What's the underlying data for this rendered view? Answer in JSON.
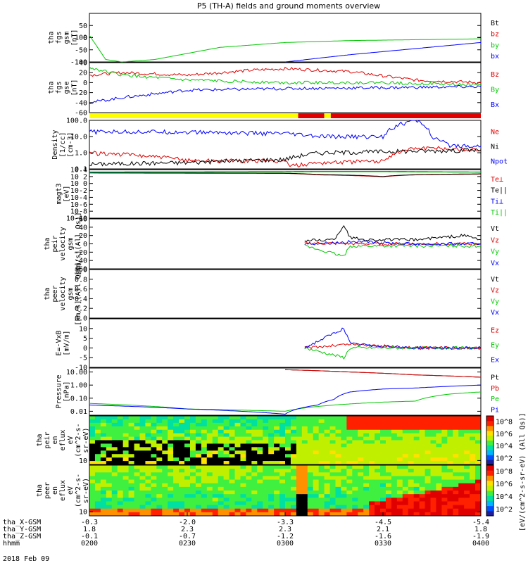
{
  "title": "P5 (TH-A) fields and ground moments overview",
  "date_label": "2018 Feb 09",
  "colors": {
    "black": "#000000",
    "red": "#e00000",
    "green": "#00c800",
    "blue": "#0000ff",
    "yellow": "#ffff00",
    "orange": "#ff8000",
    "cyan": "#00c8ff"
  },
  "chart_data": [
    {
      "id": "fgs_gsm",
      "type": "line",
      "ylabel": [
        "tha",
        "fgs",
        "gsm",
        "[nT]"
      ],
      "ylim": [
        -100,
        100
      ],
      "yticks": [
        "-100",
        "-50",
        "0",
        "50",
        "100"
      ],
      "series": [
        {
          "name": "Bt",
          "color": "#000000"
        },
        {
          "name": "bz",
          "color": "#e00000"
        },
        {
          "name": "by",
          "color": "#00c800",
          "x": [
            0,
            5,
            10,
            20,
            40,
            60,
            80,
            120
          ],
          "y": [
            10,
            -90,
            -100,
            -90,
            -40,
            -20,
            -12,
            -5
          ]
        },
        {
          "name": "bx",
          "color": "#0000ff",
          "x": [
            60,
            80,
            100,
            120
          ],
          "y": [
            -100,
            -70,
            -45,
            -20
          ]
        }
      ]
    },
    {
      "id": "fgs_gse",
      "type": "line",
      "ylabel": [
        "tha",
        "fgs",
        "gse",
        "[nT]"
      ],
      "ylim": [
        -60,
        40
      ],
      "yticks": [
        "-60",
        "-40",
        "-20",
        "0",
        "20",
        "40"
      ],
      "series": [
        {
          "name": "Bz",
          "color": "#e00000",
          "x": [
            0,
            10,
            30,
            50,
            60,
            80,
            100,
            120
          ],
          "y": [
            15,
            20,
            15,
            25,
            28,
            22,
            5,
            0
          ]
        },
        {
          "name": "By",
          "color": "#00c800",
          "x": [
            0,
            10,
            30,
            60,
            90,
            120
          ],
          "y": [
            30,
            15,
            5,
            0,
            0,
            -5
          ]
        },
        {
          "name": "Bx",
          "color": "#0000ff",
          "x": [
            0,
            10,
            30,
            60,
            90,
            120
          ],
          "y": [
            -40,
            -30,
            -15,
            -12,
            -10,
            -8
          ]
        }
      ]
    },
    {
      "id": "region_bar",
      "type": "bar",
      "segments": [
        {
          "x0": 0,
          "x1": 64,
          "color": "#ffff00"
        },
        {
          "x0": 64,
          "x1": 72,
          "color": "#e00000"
        },
        {
          "x0": 72,
          "x1": 74,
          "color": "#ffff00"
        },
        {
          "x0": 74,
          "x1": 120,
          "color": "#e00000"
        }
      ]
    },
    {
      "id": "density",
      "type": "line",
      "ylabel": [
        "Density",
        "[1/cc]",
        "[cm-3]"
      ],
      "yscale": "log",
      "ylim": [
        0.1,
        100
      ],
      "yticks": [
        "0.1",
        "1.0",
        "10.0",
        "100.0"
      ],
      "series": [
        {
          "name": "Ne",
          "color": "#e00000",
          "x": [
            0,
            10,
            30,
            60,
            62,
            70,
            90,
            100,
            110,
            120
          ],
          "y": [
            1.0,
            0.8,
            0.35,
            0.3,
            0.15,
            0.25,
            0.3,
            2.0,
            1.8,
            1.5
          ]
        },
        {
          "name": "Ni",
          "color": "#000000",
          "x": [
            0,
            30,
            60,
            70,
            90,
            100,
            120
          ],
          "y": [
            0.2,
            0.25,
            0.4,
            1.0,
            1.2,
            1.3,
            1.5
          ]
        },
        {
          "name": "Npot",
          "color": "#0000ff",
          "x": [
            0,
            20,
            40,
            60,
            70,
            90,
            100,
            105,
            110,
            120
          ],
          "y": [
            20,
            20,
            18,
            15,
            10,
            10,
            100,
            8,
            3,
            2.5
          ]
        }
      ]
    },
    {
      "id": "temperature",
      "type": "line",
      "ylabel": [
        "magt3",
        "[eV]"
      ],
      "yscale": "log",
      "ylim": [
        1e-10,
        10000
      ],
      "yticks": [
        "10-10",
        "10-8",
        "10-6",
        "10-4",
        "10-2",
        "10 0",
        "10 2",
        "10 4"
      ],
      "series": [
        {
          "name": "Te⊥",
          "color": "#e00000",
          "x": [
            0,
            60,
            70,
            90,
            100,
            120
          ],
          "y": [
            1000,
            800,
            300,
            80,
            300,
            500
          ]
        },
        {
          "name": "Te||",
          "color": "#000000",
          "x": [
            0,
            60,
            70,
            90,
            100,
            120
          ],
          "y": [
            1200,
            900,
            400,
            100,
            350,
            600
          ]
        },
        {
          "name": "Ti⊥",
          "color": "#0000ff",
          "x": [
            0,
            60,
            70,
            90,
            100,
            120
          ],
          "y": [
            2000,
            2500,
            3000,
            3000,
            2500,
            2000
          ]
        },
        {
          "name": "Ti||",
          "color": "#00c800",
          "x": [
            0,
            60,
            70,
            90,
            100,
            120
          ],
          "y": [
            1500,
            2000,
            2500,
            2500,
            2000,
            1800
          ]
        }
      ]
    },
    {
      "id": "peir_velocity",
      "type": "line",
      "ylabel": [
        "tha",
        "peir",
        "velocity",
        "gsm",
        "[km/s](All Qs)]"
      ],
      "ylim": [
        -60,
        60
      ],
      "yticks": [
        "-60",
        "-40",
        "-20",
        "0",
        "20",
        "40",
        "60"
      ],
      "series": [
        {
          "name": "Vt",
          "color": "#000000",
          "x": [
            66,
            75,
            78,
            80,
            85,
            100,
            115,
            120
          ],
          "y": [
            8,
            10,
            45,
            15,
            10,
            10,
            20,
            10
          ]
        },
        {
          "name": "Vz",
          "color": "#e00000",
          "x": [
            66,
            80,
            100,
            120
          ],
          "y": [
            2,
            0,
            0,
            0
          ]
        },
        {
          "name": "Vy",
          "color": "#00c800",
          "x": [
            66,
            78,
            80,
            100,
            120
          ],
          "y": [
            -5,
            -30,
            -5,
            -5,
            -5
          ]
        },
        {
          "name": "Vx",
          "color": "#0000ff",
          "x": [
            66,
            80,
            100,
            120
          ],
          "y": [
            0,
            5,
            0,
            0
          ]
        }
      ]
    },
    {
      "id": "peer_velocity",
      "type": "line",
      "ylabel": [
        "tha",
        "peer",
        "velocity",
        "gsm",
        "[km/s](All Qs)]"
      ],
      "ylim": [
        0,
        1
      ],
      "yticks": [
        "0.0",
        "0.2",
        "0.4",
        "0.6",
        "0.8",
        "1.0"
      ],
      "series": [
        {
          "name": "Vt",
          "color": "#000000"
        },
        {
          "name": "Vz",
          "color": "#e00000"
        },
        {
          "name": "Vy",
          "color": "#00c800"
        },
        {
          "name": "Vx",
          "color": "#0000ff"
        }
      ]
    },
    {
      "id": "efield",
      "type": "line",
      "ylabel": [
        "E=-VxB",
        "[mV/m]"
      ],
      "ylim": [
        -10,
        15
      ],
      "yticks": [
        "-10",
        "-5",
        "0",
        "5",
        "10"
      ],
      "series": [
        {
          "name": "Ez",
          "color": "#e00000",
          "x": [
            66,
            80,
            100,
            120
          ],
          "y": [
            0,
            2,
            0,
            0
          ]
        },
        {
          "name": "Ey",
          "color": "#00c800",
          "x": [
            66,
            78,
            80,
            100,
            120
          ],
          "y": [
            0,
            -5,
            0,
            0,
            0
          ]
        },
        {
          "name": "Ex",
          "color": "#0000ff",
          "x": [
            66,
            78,
            80,
            100,
            120
          ],
          "y": [
            0,
            10,
            2,
            0,
            0
          ]
        }
      ]
    },
    {
      "id": "pressure",
      "type": "line",
      "ylabel": [
        "Pressure",
        "[nPa]"
      ],
      "yscale": "log",
      "ylim": [
        0.005,
        20
      ],
      "yticks": [
        "0.01",
        "0.10",
        "1.00",
        "10.00"
      ],
      "series": [
        {
          "name": "Pt",
          "color": "#000000",
          "x": [
            60,
            80,
            100,
            120
          ],
          "y": [
            15,
            10,
            6,
            4
          ]
        },
        {
          "name": "Pb",
          "color": "#e00000",
          "x": [
            60,
            80,
            100,
            120
          ],
          "y": [
            15,
            10,
            6,
            4
          ]
        },
        {
          "name": "Pe",
          "color": "#00c800",
          "x": [
            0,
            30,
            60,
            75,
            90,
            100,
            110,
            120
          ],
          "y": [
            0.04,
            0.015,
            0.01,
            0.03,
            0.05,
            0.06,
            0.2,
            0.3
          ]
        },
        {
          "name": "Pi",
          "color": "#0000ff",
          "x": [
            0,
            30,
            60,
            70,
            75,
            80,
            90,
            100,
            120
          ],
          "y": [
            0.03,
            0.015,
            0.006,
            0.03,
            0.08,
            0.3,
            0.5,
            0.6,
            1.0
          ]
        }
      ]
    },
    {
      "id": "peir_spectrogram",
      "type": "heatmap",
      "ylabel": [
        "tha",
        "peir",
        "en",
        "eflux",
        "eV",
        "(cm^2-s-",
        "sr-eV)"
      ],
      "yscale": "log",
      "ylim": [
        5,
        25000
      ],
      "yticks": [
        "10",
        "100",
        "1000",
        "10000"
      ],
      "colorbar": {
        "label": "[eV/(cm^2-s-sr-eV)]",
        "ticks": [
          "10^2",
          "10^4",
          "10^6",
          "10^8"
        ]
      }
    },
    {
      "id": "peer_spectrogram",
      "type": "heatmap",
      "ylabel": [
        "tha",
        "peer",
        "en",
        "eflux",
        "eV",
        "(cm^2-s-",
        "sr-eV)"
      ],
      "yscale": "log",
      "ylim": [
        5,
        25000
      ],
      "yticks": [
        "10",
        "100",
        "1000",
        "10000"
      ],
      "colorbar": {
        "label": "[eV/(cm^2-s-sr-eV)]",
        "ticks": [
          "10^2",
          "10^4",
          "10^6",
          "10^8"
        ]
      }
    }
  ],
  "colorbar_label": "[eV/(cm^2-s-sr-eV) (All Qs)]",
  "x_axis": {
    "xlim": [
      0,
      120
    ],
    "row_labels": [
      "tha_X-GSM",
      "tha_Y-GSM",
      "tha_Z-GSM",
      "hhmm"
    ],
    "ticks": [
      {
        "x": 0,
        "labels": [
          "-0.3",
          "1.8",
          "-0.1",
          "0200"
        ]
      },
      {
        "x": 30,
        "labels": [
          "-2.0",
          "2.3",
          "-0.7",
          "0230"
        ]
      },
      {
        "x": 60,
        "labels": [
          "-3.3",
          "2.3",
          "-1.2",
          "0300"
        ]
      },
      {
        "x": 90,
        "labels": [
          "-4.5",
          "2.1",
          "-1.6",
          "0330"
        ]
      },
      {
        "x": 120,
        "labels": [
          "-5.4",
          "1.8",
          "-1.9",
          "0400"
        ]
      }
    ]
  }
}
